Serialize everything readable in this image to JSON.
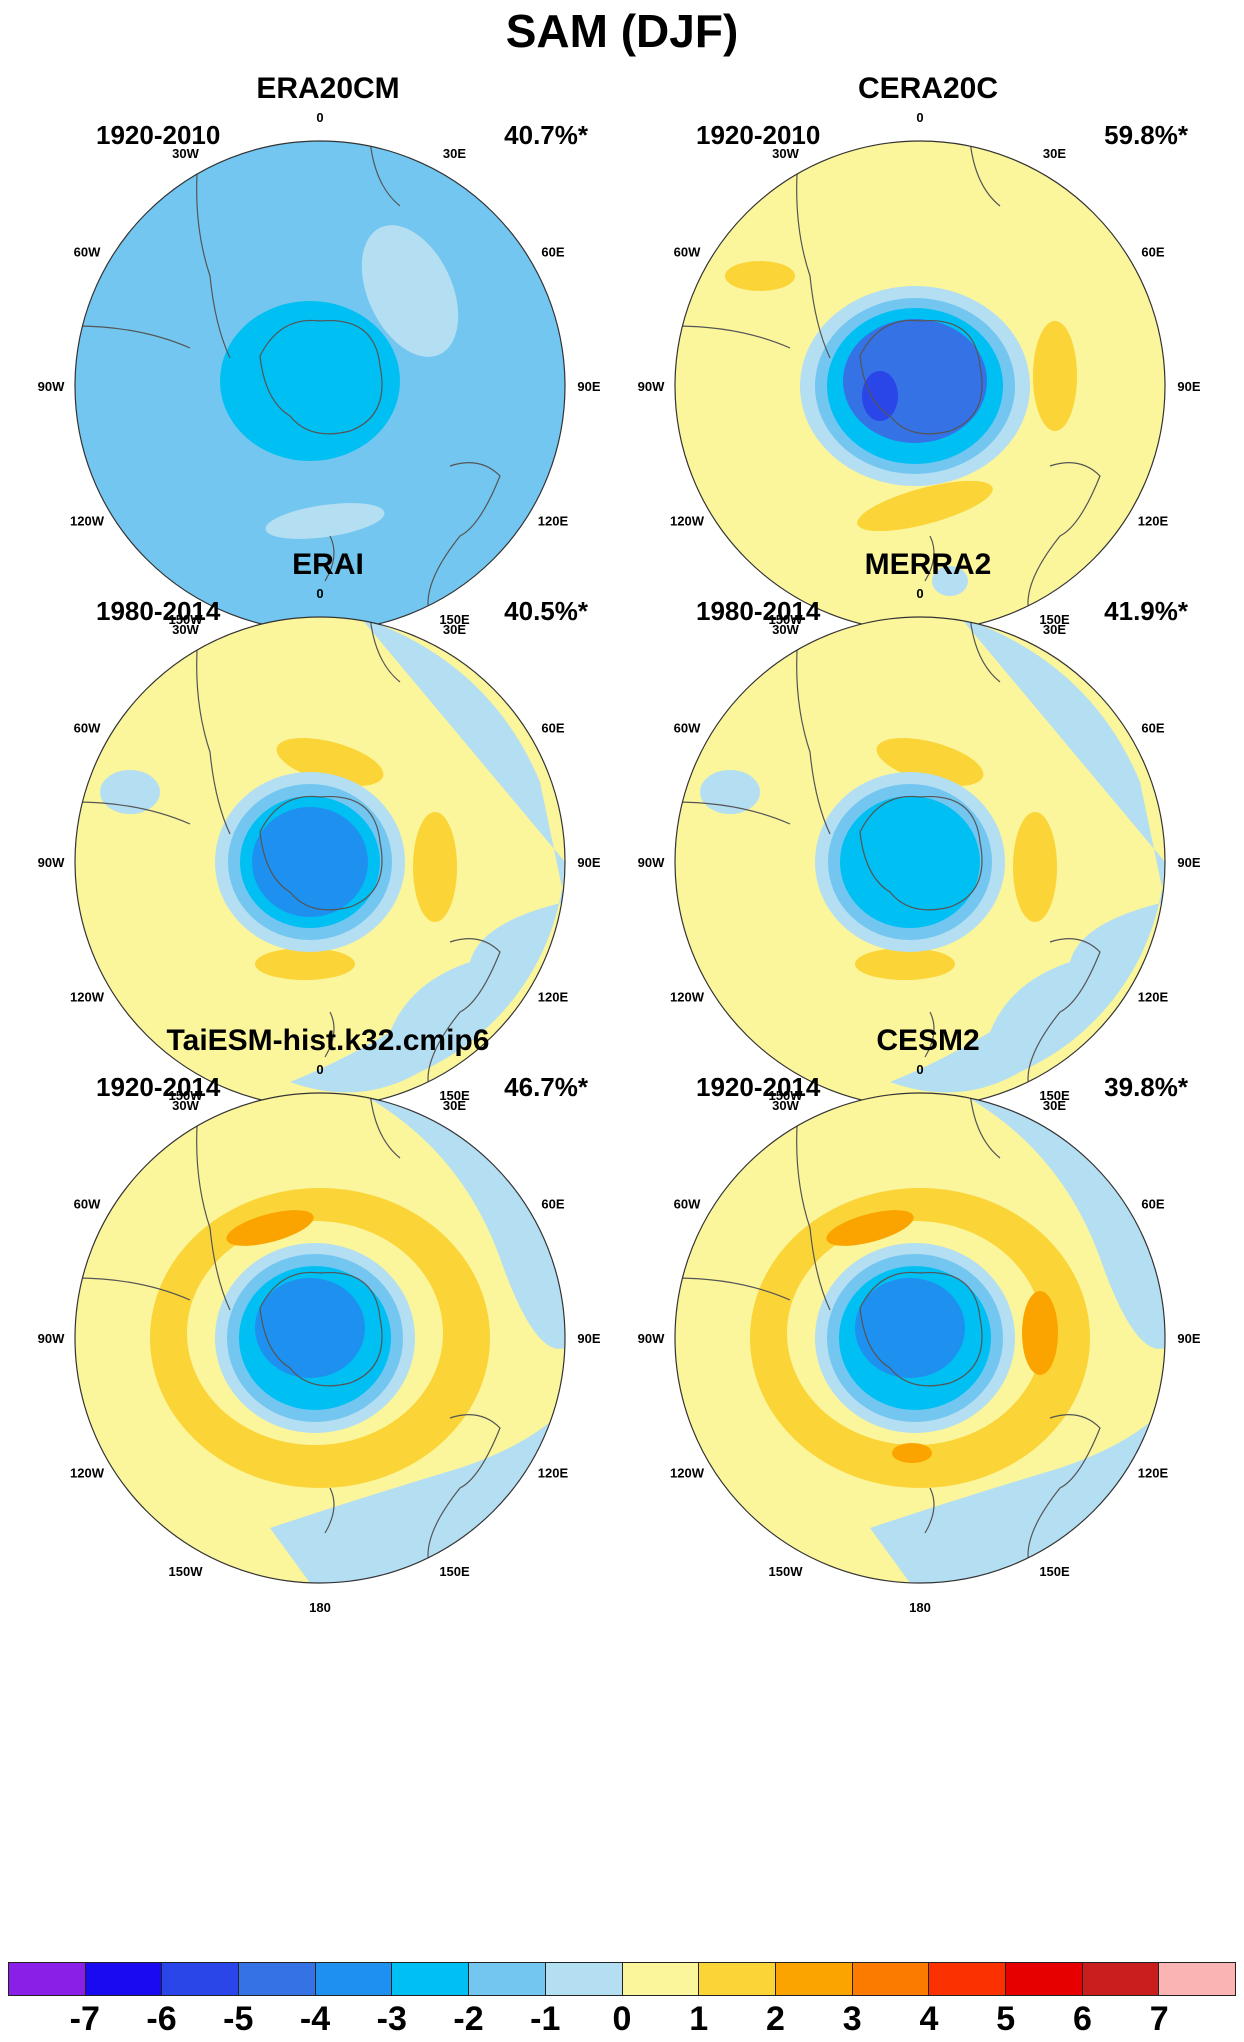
{
  "title": "SAM (DJF)",
  "lon_labels": [
    "0",
    "30E",
    "60E",
    "90E",
    "120E",
    "150E",
    "180",
    "150W",
    "120W",
    "90W",
    "60W",
    "30W"
  ],
  "panels": [
    {
      "title": "ERA20CM",
      "period": "1920-2010",
      "variance": "40.7%*",
      "pattern": "era20cm"
    },
    {
      "title": "CERA20C",
      "period": "1920-2010",
      "variance": "59.8%*",
      "pattern": "cera20c"
    },
    {
      "title": "ERAI",
      "period": "1980-2014",
      "variance": "40.5%*",
      "pattern": "erai"
    },
    {
      "title": "MERRA2",
      "period": "1980-2014",
      "variance": "41.9%*",
      "pattern": "merra2"
    },
    {
      "title": "TaiESM-hist.k32.cmip6",
      "period": "1920-2014",
      "variance": "46.7%*",
      "pattern": "taiesm"
    },
    {
      "title": "CESM2",
      "period": "1920-2014",
      "variance": "39.8%*",
      "pattern": "cesm2"
    }
  ],
  "colorbar": {
    "labels": [
      "-7",
      "-6",
      "-5",
      "-4",
      "-3",
      "-2",
      "-1",
      "0",
      "1",
      "2",
      "3",
      "4",
      "5",
      "6",
      "7"
    ],
    "colors": [
      "#8a1fe8",
      "#1a0af0",
      "#2a45e8",
      "#3472e6",
      "#1e90f0",
      "#00bff2",
      "#72c6f0",
      "#b4def2",
      "#fbf59c",
      "#fbd438",
      "#fba400",
      "#fb7a00",
      "#fb3200",
      "#e60000",
      "#c81e1e",
      "#fbb4b4"
    ]
  }
}
